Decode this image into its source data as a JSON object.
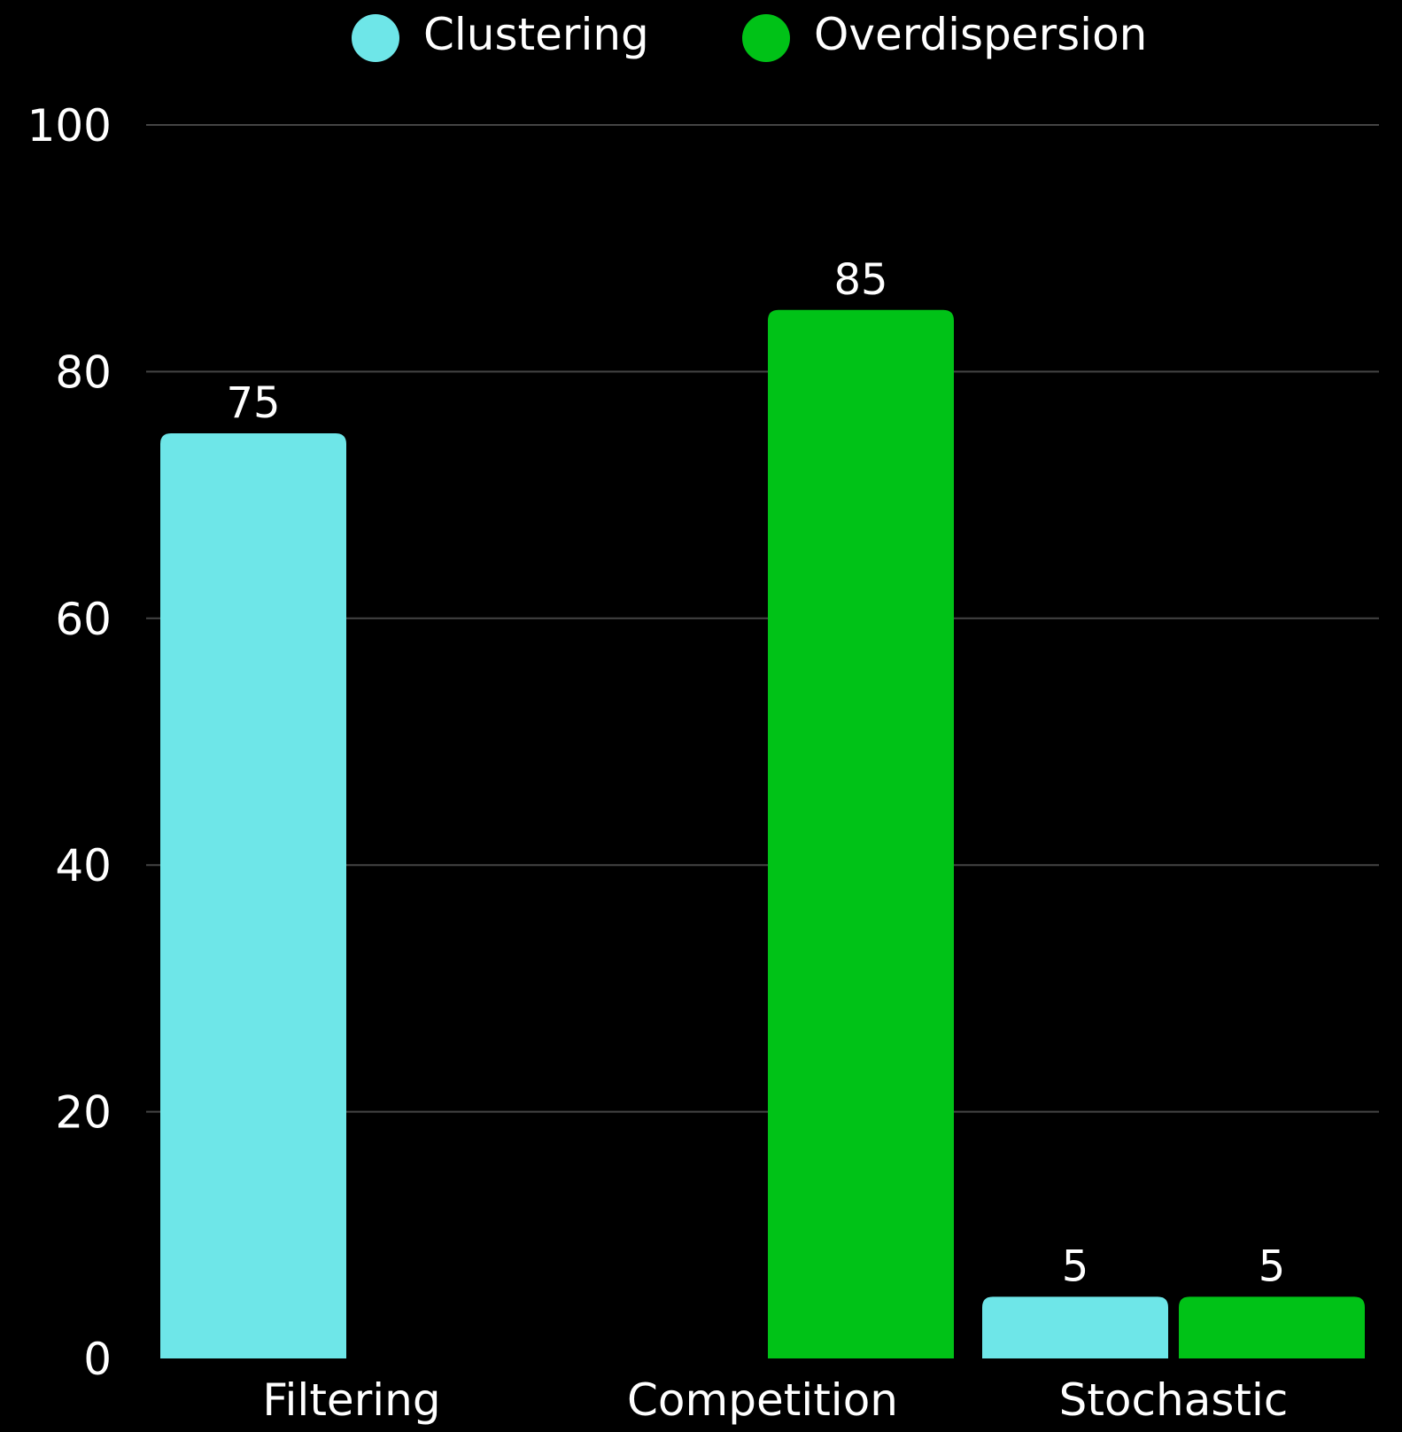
{
  "chart_data": {
    "type": "bar",
    "title": "",
    "xlabel": "",
    "ylabel": "",
    "categories": [
      "Filtering",
      "Competition",
      "Stochastic"
    ],
    "series": [
      {
        "name": "Clustering",
        "color": "#6ee6e8",
        "values": [
          75,
          null,
          5
        ]
      },
      {
        "name": "Overdispersion",
        "color": "#00c217",
        "values": [
          null,
          85,
          5
        ]
      }
    ],
    "ylim": [
      0,
      100
    ],
    "yticks": [
      0,
      20,
      40,
      60,
      80,
      100
    ],
    "grid": true,
    "legend": "top-center",
    "data_labels": true,
    "background": "#000000"
  }
}
